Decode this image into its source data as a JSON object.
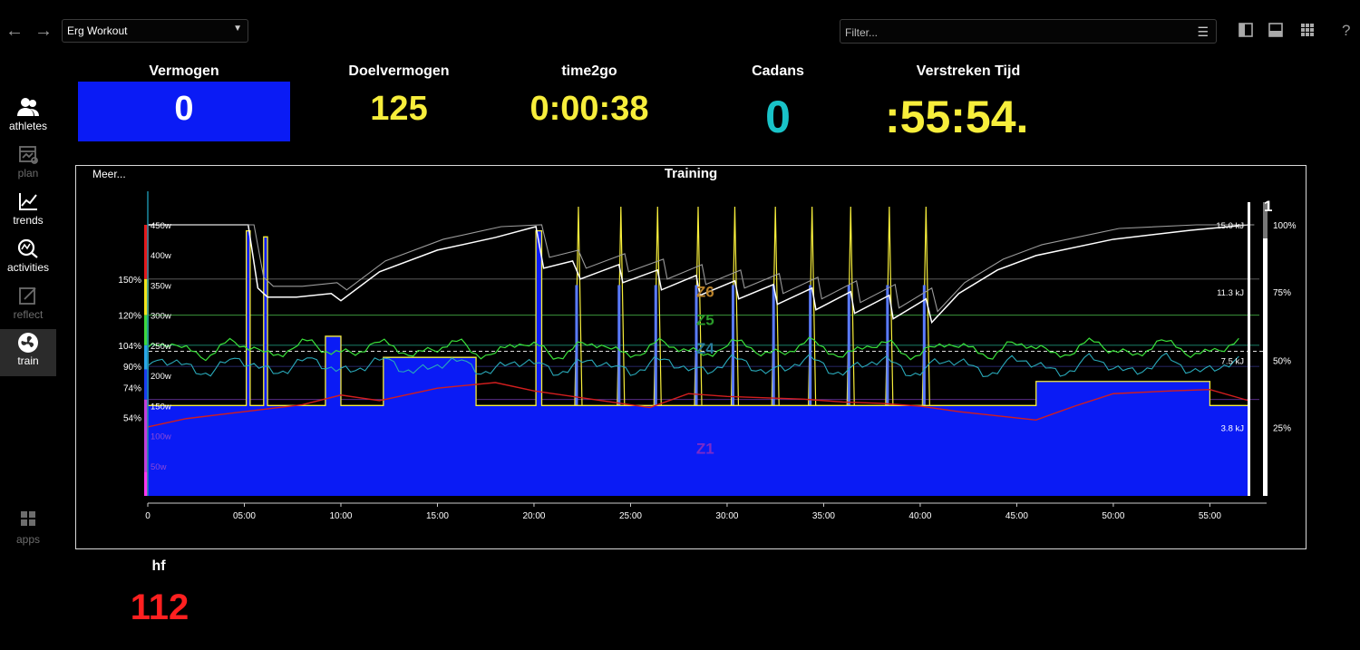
{
  "toolbar": {
    "back_icon": "arrow-left-icon",
    "forward_icon": "arrow-right-icon",
    "workout_select": "Erg Workout",
    "filter_placeholder": "Filter...",
    "help_label": "?"
  },
  "sidebar": {
    "items": [
      {
        "label": "athletes",
        "icon": "athletes-icon",
        "enabled": true
      },
      {
        "label": "plan",
        "icon": "calendar-icon",
        "enabled": false
      },
      {
        "label": "trends",
        "icon": "trend-chart-icon",
        "enabled": true
      },
      {
        "label": "activities",
        "icon": "search-chart-icon",
        "enabled": true
      },
      {
        "label": "reflect",
        "icon": "notes-icon",
        "enabled": false
      },
      {
        "label": "train",
        "icon": "fan-icon",
        "enabled": true,
        "active": true
      }
    ],
    "apps_label": "apps"
  },
  "metrics": {
    "power": {
      "title": "Vermogen",
      "value": "0"
    },
    "target_power": {
      "title": "Doelvermogen",
      "value": "125"
    },
    "time_to_go": {
      "title": "time2go",
      "value": "0:00:38"
    },
    "cadence": {
      "title": "Cadans",
      "value": "0"
    },
    "elapsed": {
      "title": "Verstreken Tijd",
      "value": ":55:54."
    },
    "heart_rate": {
      "title": "hf",
      "value": "112"
    }
  },
  "colors": {
    "power_fill": "#0a1bf5",
    "yellow": "#f7ee3b",
    "cyan": "#19c3c8",
    "red": "#ff2020",
    "hr_line": "#d21e1e",
    "green_line": "#3adf3a",
    "teal_line": "#29a9b9",
    "wbal_line": "#ffffff"
  },
  "chart": {
    "more_label": "Meer...",
    "lap_marker": "1",
    "chart_data": {
      "type": "area",
      "title": "Training",
      "x_ticks": [
        "0",
        "05:00",
        "10:00",
        "15:00",
        "20:00",
        "25:00",
        "30:00",
        "35:00",
        "40:00",
        "45:00",
        "50:00",
        "55:00"
      ],
      "x_range_min": [
        0,
        57
      ],
      "left_watt_ticks": [
        "450w",
        "400w",
        "350w",
        "300w",
        "250w",
        "200w",
        "150w",
        "100w",
        "50w"
      ],
      "left_percent_ticks": [
        "150%",
        "120%",
        "104%",
        "90%",
        "74%",
        "54%"
      ],
      "right_energy_ticks": [
        "15.0 kJ",
        "11.3 kJ",
        "7.5 kJ",
        "3.8 kJ"
      ],
      "right_percent_ticks": [
        "100%",
        "75%",
        "50%",
        "25%"
      ],
      "zone_labels": [
        "Z6",
        "Z5",
        "Z4",
        "Z1"
      ],
      "ftp_reference_w": 240,
      "target_power_segments": [
        {
          "from_min": 0,
          "to_min": 5.1,
          "watts": 150
        },
        {
          "from_min": 5.1,
          "to_min": 5.3,
          "watts": 440
        },
        {
          "from_min": 5.3,
          "to_min": 6.0,
          "watts": 150
        },
        {
          "from_min": 6.0,
          "to_min": 6.2,
          "watts": 430
        },
        {
          "from_min": 6.2,
          "to_min": 9.2,
          "watts": 150
        },
        {
          "from_min": 9.2,
          "to_min": 10.0,
          "watts": 265
        },
        {
          "from_min": 10.0,
          "to_min": 12.2,
          "watts": 150
        },
        {
          "from_min": 12.2,
          "to_min": 17.0,
          "watts": 230
        },
        {
          "from_min": 17.0,
          "to_min": 20.1,
          "watts": 150
        },
        {
          "from_min": 20.1,
          "to_min": 20.4,
          "watts": 440
        },
        {
          "from_min": 20.4,
          "to_min": 45.0,
          "watts": 150
        },
        {
          "from_min": 45.0,
          "to_min": 46.0,
          "watts": 150
        },
        {
          "from_min": 46.0,
          "to_min": 55.0,
          "watts": 190
        },
        {
          "from_min": 55.0,
          "to_min": 57.0,
          "watts": 150
        }
      ],
      "sprint_minutes": [
        22.3,
        24.5,
        26.4,
        28.5,
        30.4,
        32.5,
        34.4,
        36.4,
        38.4,
        40.3
      ],
      "wbal_kj_points": [
        [
          0,
          15.0
        ],
        [
          5.2,
          15.0
        ],
        [
          5.7,
          11.5
        ],
        [
          6.2,
          11.0
        ],
        [
          7.7,
          11.0
        ],
        [
          9.5,
          11.2
        ],
        [
          10.0,
          10.8
        ],
        [
          12.0,
          12.4
        ],
        [
          15.0,
          13.6
        ],
        [
          18.0,
          14.3
        ],
        [
          20.1,
          14.9
        ],
        [
          20.5,
          12.6
        ],
        [
          22.0,
          13.0
        ],
        [
          22.4,
          12.0
        ],
        [
          24.4,
          12.8
        ],
        [
          24.6,
          11.8
        ],
        [
          26.4,
          12.5
        ],
        [
          26.6,
          11.4
        ],
        [
          28.4,
          12.2
        ],
        [
          28.6,
          11.1
        ],
        [
          30.4,
          11.9
        ],
        [
          30.6,
          10.9
        ],
        [
          32.4,
          11.7
        ],
        [
          32.6,
          10.6
        ],
        [
          34.4,
          11.5
        ],
        [
          34.6,
          10.3
        ],
        [
          36.4,
          11.3
        ],
        [
          36.6,
          10.1
        ],
        [
          38.4,
          11.1
        ],
        [
          38.6,
          9.8
        ],
        [
          40.3,
          10.9
        ],
        [
          40.6,
          9.6
        ],
        [
          42.0,
          11.2
        ],
        [
          44.0,
          12.5
        ],
        [
          46.0,
          13.3
        ],
        [
          50.0,
          14.2
        ],
        [
          54.0,
          14.7
        ],
        [
          57.0,
          15.0
        ]
      ],
      "heart_rate_bpm_points": [
        [
          0,
          95
        ],
        [
          2,
          101
        ],
        [
          5,
          106
        ],
        [
          8,
          111
        ],
        [
          10,
          118
        ],
        [
          12,
          114
        ],
        [
          15,
          123
        ],
        [
          18,
          127
        ],
        [
          20,
          121
        ],
        [
          22,
          117
        ],
        [
          24,
          113
        ],
        [
          26,
          109
        ],
        [
          28,
          119
        ],
        [
          30,
          117
        ],
        [
          32,
          116
        ],
        [
          34,
          115
        ],
        [
          36,
          113
        ],
        [
          38,
          112
        ],
        [
          40,
          110
        ],
        [
          42,
          106
        ],
        [
          44,
          103
        ],
        [
          46,
          100
        ],
        [
          48,
          110
        ],
        [
          50,
          119
        ],
        [
          53,
          121
        ],
        [
          55,
          122
        ],
        [
          57,
          114
        ]
      ]
    }
  }
}
